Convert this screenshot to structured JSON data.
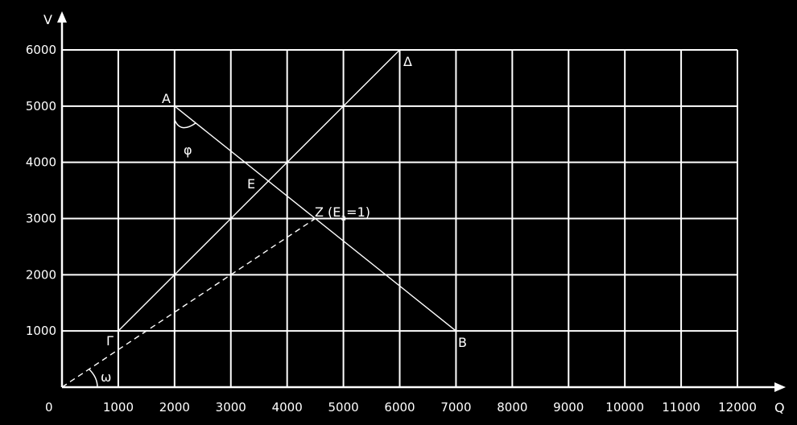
{
  "chart_data": {
    "type": "line",
    "title": "",
    "xlabel": "Q",
    "ylabel": "V",
    "xlim": [
      0,
      12000
    ],
    "ylim": [
      0,
      6000
    ],
    "xticks": [
      1000,
      2000,
      3000,
      4000,
      5000,
      6000,
      7000,
      8000,
      9000,
      10000,
      11000,
      12000
    ],
    "yticks": [
      1000,
      2000,
      3000,
      4000,
      5000,
      6000
    ],
    "origin_label": "0",
    "grid": true,
    "series": [
      {
        "id": "AB",
        "style": "solid",
        "points": [
          [
            2000,
            5000
          ],
          [
            7000,
            1000
          ]
        ]
      },
      {
        "id": "GD",
        "style": "solid",
        "points": [
          [
            1000,
            1000
          ],
          [
            6000,
            6000
          ]
        ]
      },
      {
        "id": "OZ",
        "style": "dashed",
        "points": [
          [
            0,
            0
          ],
          [
            4500,
            3000
          ]
        ]
      }
    ],
    "annotations": [
      {
        "label": "A",
        "x": 2000,
        "y": 5000
      },
      {
        "label": "B",
        "x": 7000,
        "y": 1000
      },
      {
        "label": "Γ",
        "x": 1000,
        "y": 1000
      },
      {
        "label": "Δ",
        "x": 6000,
        "y": 6000
      },
      {
        "label": "E",
        "x": 3667,
        "y": 3667
      },
      {
        "label": "Z (E",
        "sub": "a",
        "suffix": "=1)",
        "x": 4500,
        "y": 3000
      },
      {
        "label": "φ",
        "x": 2000,
        "y": 5000
      },
      {
        "label": "ω",
        "x": 0,
        "y": 0
      }
    ]
  }
}
